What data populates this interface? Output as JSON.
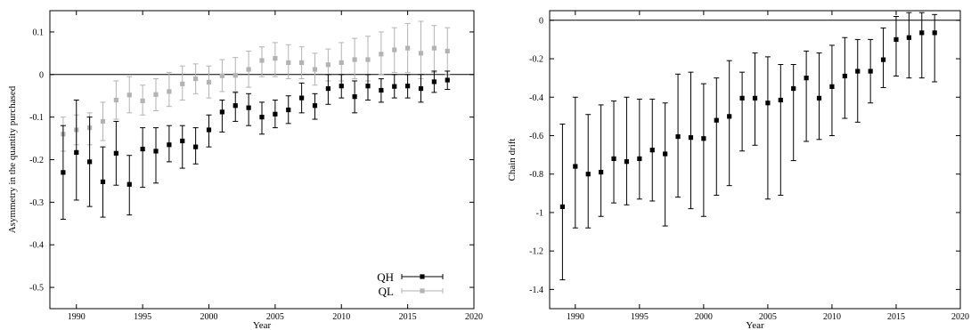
{
  "chart_data": [
    {
      "type": "scatter",
      "error_bars": true,
      "xlabel": "Year",
      "ylabel": "Asymmetry in the quantity purchased",
      "xlim": [
        1988,
        2020
      ],
      "ylim": [
        -0.55,
        0.15
      ],
      "x_ticks": [
        1990,
        1995,
        2000,
        2005,
        2010,
        2015,
        2020
      ],
      "y_ticks": [
        -0.5,
        -0.4,
        -0.3,
        -0.2,
        -0.1,
        0,
        0.1
      ],
      "y_tick_labels": [
        "-0.5",
        "-0.4",
        "-0.3",
        "-0.2",
        "-0.1",
        "0",
        "0.1"
      ],
      "reference_line": 0,
      "legend_position": "bottom-right",
      "series": [
        {
          "name": "QH",
          "color": "#000000",
          "x": [
            1989,
            1990,
            1991,
            1992,
            1993,
            1994,
            1995,
            1996,
            1997,
            1998,
            1999,
            2000,
            2001,
            2002,
            2003,
            2004,
            2005,
            2006,
            2007,
            2008,
            2009,
            2010,
            2011,
            2012,
            2013,
            2014,
            2015,
            2016,
            2017,
            2018
          ],
          "y": [
            -0.23,
            -0.183,
            -0.205,
            -0.252,
            -0.185,
            -0.258,
            -0.175,
            -0.18,
            -0.165,
            -0.156,
            -0.17,
            -0.13,
            -0.088,
            -0.073,
            -0.078,
            -0.1,
            -0.093,
            -0.083,
            -0.055,
            -0.073,
            -0.033,
            -0.027,
            -0.052,
            -0.027,
            -0.037,
            -0.028,
            -0.027,
            -0.033,
            -0.017,
            -0.013
          ],
          "low": [
            -0.34,
            -0.295,
            -0.31,
            -0.335,
            -0.26,
            -0.33,
            -0.265,
            -0.255,
            -0.205,
            -0.22,
            -0.21,
            -0.17,
            -0.135,
            -0.11,
            -0.12,
            -0.14,
            -0.125,
            -0.115,
            -0.09,
            -0.105,
            -0.07,
            -0.055,
            -0.09,
            -0.06,
            -0.065,
            -0.055,
            -0.055,
            -0.065,
            -0.042,
            -0.035
          ],
          "high": [
            -0.12,
            -0.06,
            -0.1,
            -0.17,
            -0.11,
            -0.19,
            -0.125,
            -0.125,
            -0.12,
            -0.12,
            -0.125,
            -0.095,
            -0.06,
            -0.042,
            -0.045,
            -0.065,
            -0.06,
            -0.05,
            -0.02,
            -0.045,
            0,
            0,
            -0.015,
            0,
            -0.01,
            0,
            0,
            0,
            0.008,
            0.008
          ]
        },
        {
          "name": "QL",
          "color": "#b3b3b3",
          "x": [
            1989,
            1990,
            1991,
            1992,
            1993,
            1994,
            1995,
            1996,
            1997,
            1998,
            1999,
            2000,
            2001,
            2002,
            2003,
            2004,
            2005,
            2006,
            2007,
            2008,
            2009,
            2010,
            2011,
            2012,
            2013,
            2014,
            2015,
            2016,
            2017,
            2018
          ],
          "y": [
            -0.14,
            -0.13,
            -0.125,
            -0.11,
            -0.06,
            -0.048,
            -0.062,
            -0.047,
            -0.04,
            -0.022,
            -0.01,
            -0.018,
            -0.003,
            -0.002,
            0.012,
            0.033,
            0.038,
            0.028,
            0.028,
            0.012,
            0.023,
            0.028,
            0.035,
            0.035,
            0.048,
            0.058,
            0.062,
            0.05,
            0.062,
            0.055
          ],
          "low": [
            -0.18,
            -0.165,
            -0.165,
            -0.155,
            -0.105,
            -0.09,
            -0.095,
            -0.085,
            -0.075,
            -0.06,
            -0.045,
            -0.055,
            -0.04,
            -0.04,
            -0.03,
            -0.005,
            -0.005,
            -0.01,
            -0.01,
            -0.025,
            -0.015,
            -0.015,
            -0.01,
            -0.015,
            0,
            0.005,
            0.005,
            -0.01,
            0.005,
            0
          ],
          "high": [
            -0.1,
            -0.095,
            -0.09,
            -0.065,
            -0.015,
            -0.005,
            -0.025,
            -0.01,
            0.005,
            0.02,
            0.025,
            0.02,
            0.035,
            0.04,
            0.055,
            0.065,
            0.075,
            0.07,
            0.065,
            0.05,
            0.06,
            0.075,
            0.085,
            0.09,
            0.1,
            0.11,
            0.12,
            0.125,
            0.115,
            0.11
          ]
        }
      ]
    },
    {
      "type": "scatter",
      "error_bars": true,
      "xlabel": "Year",
      "ylabel": "Chain drift",
      "xlim": [
        1988,
        2020
      ],
      "ylim": [
        -1.5,
        0.05
      ],
      "x_ticks": [
        1990,
        1995,
        2000,
        2005,
        2010,
        2015,
        2020
      ],
      "y_ticks": [
        -1.4,
        -1.2,
        -1,
        -0.8,
        -0.6,
        -0.4,
        -0.2,
        0
      ],
      "y_tick_labels": [
        "-1.4",
        "-1.2",
        "-1",
        "-0.8",
        "-0.6",
        "-0.4",
        "-0.2",
        "0"
      ],
      "reference_line": 0,
      "legend_position": "none",
      "series": [
        {
          "color": "#000000",
          "x": [
            1989,
            1990,
            1991,
            1992,
            1993,
            1994,
            1995,
            1996,
            1997,
            1998,
            1999,
            2000,
            2001,
            2002,
            2003,
            2004,
            2005,
            2006,
            2007,
            2008,
            2009,
            2010,
            2011,
            2012,
            2013,
            2014,
            2015,
            2016,
            2017,
            2018
          ],
          "y": [
            -0.97,
            -0.76,
            -0.8,
            -0.79,
            -0.72,
            -0.735,
            -0.72,
            -0.675,
            -0.695,
            -0.605,
            -0.61,
            -0.615,
            -0.52,
            -0.5,
            -0.405,
            -0.405,
            -0.43,
            -0.415,
            -0.355,
            -0.3,
            -0.405,
            -0.345,
            -0.29,
            -0.265,
            -0.265,
            -0.205,
            -0.1,
            -0.09,
            -0.065,
            -0.065
          ],
          "low": [
            -1.35,
            -1.08,
            -1.08,
            -1.02,
            -0.95,
            -0.96,
            -0.93,
            -0.94,
            -1.07,
            -0.92,
            -0.98,
            -1.02,
            -0.91,
            -0.86,
            -0.68,
            -0.65,
            -0.93,
            -0.91,
            -0.73,
            -0.63,
            -0.62,
            -0.6,
            -0.51,
            -0.53,
            -0.43,
            -0.35,
            -0.29,
            -0.3,
            -0.3,
            -0.32
          ],
          "high": [
            -0.54,
            -0.4,
            -0.49,
            -0.44,
            -0.42,
            -0.4,
            -0.41,
            -0.41,
            -0.43,
            -0.28,
            -0.27,
            -0.33,
            -0.3,
            -0.21,
            -0.27,
            -0.17,
            -0.19,
            -0.23,
            -0.23,
            -0.16,
            -0.17,
            -0.13,
            -0.09,
            -0.1,
            -0.1,
            -0.04,
            0.02,
            0.04,
            0.04,
            0.03
          ]
        }
      ]
    }
  ]
}
